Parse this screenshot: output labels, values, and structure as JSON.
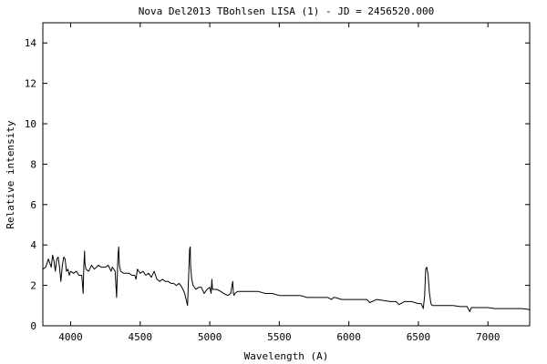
{
  "chart_data": {
    "type": "line",
    "title": "Nova Del2013 TBohlsen LISA (1) - JD = 2456520.000",
    "xlabel": "Wavelength (A)",
    "ylabel": "Relative intensity",
    "xlim": [
      3800,
      7300
    ],
    "ylim": [
      0,
      15
    ],
    "grid": false,
    "legend": "none",
    "x_ticks": [
      4000,
      4500,
      5000,
      5500,
      6000,
      6500,
      7000
    ],
    "y_ticks": [
      0,
      2,
      4,
      6,
      8,
      10,
      12,
      14
    ],
    "line_color": "#000000",
    "series": [
      {
        "x": [
          3800,
          3820,
          3840,
          3860,
          3870,
          3880,
          3890,
          3900,
          3910,
          3920,
          3930,
          3940,
          3950,
          3960,
          3970,
          3980,
          3990,
          4000,
          4020,
          4040,
          4060,
          4080,
          4090,
          4095,
          4100,
          4102,
          4110,
          4130,
          4150,
          4170,
          4200,
          4220,
          4250,
          4270,
          4290,
          4300,
          4320,
          4330,
          4340,
          4345,
          4350,
          4360,
          4380,
          4400,
          4420,
          4440,
          4460,
          4470,
          4480,
          4500,
          4520,
          4540,
          4560,
          4580,
          4600,
          4620,
          4640,
          4660,
          4680,
          4700,
          4720,
          4740,
          4760,
          4780,
          4800,
          4820,
          4840,
          4850,
          4855,
          4860,
          4862,
          4870,
          4880,
          4900,
          4920,
          4940,
          4960,
          4980,
          5000,
          5010,
          5015,
          5020,
          5030,
          5050,
          5080,
          5100,
          5130,
          5150,
          5165,
          5170,
          5175,
          5180,
          5200,
          5250,
          5300,
          5350,
          5400,
          5450,
          5500,
          5550,
          5600,
          5650,
          5700,
          5750,
          5800,
          5850,
          5875,
          5890,
          5900,
          5950,
          6000,
          6050,
          6100,
          6130,
          6150,
          6200,
          6250,
          6300,
          6340,
          6360,
          6400,
          6450,
          6500,
          6520,
          6535,
          6545,
          6552,
          6560,
          6570,
          6580,
          6590,
          6600,
          6620,
          6650,
          6700,
          6750,
          6800,
          6850,
          6870,
          6880,
          6900,
          6950,
          7000,
          7050,
          7100,
          7150,
          7200,
          7250,
          7300
        ],
        "y": [
          2.8,
          2.9,
          3.3,
          2.9,
          3.5,
          3.2,
          2.7,
          3.3,
          3.4,
          2.9,
          2.2,
          3.0,
          3.4,
          3.3,
          2.7,
          2.8,
          2.5,
          2.7,
          2.6,
          2.7,
          2.5,
          2.5,
          1.6,
          3.0,
          3.7,
          3.1,
          2.8,
          2.7,
          3.0,
          2.8,
          3.0,
          2.9,
          2.9,
          3.0,
          2.7,
          2.9,
          2.7,
          1.4,
          3.5,
          3.9,
          3.0,
          2.7,
          2.6,
          2.6,
          2.6,
          2.5,
          2.5,
          2.3,
          2.8,
          2.6,
          2.7,
          2.5,
          2.6,
          2.4,
          2.7,
          2.3,
          2.2,
          2.3,
          2.2,
          2.2,
          2.1,
          2.1,
          2.0,
          2.1,
          1.9,
          1.6,
          1.0,
          2.8,
          3.8,
          3.9,
          3.0,
          2.3,
          2.0,
          1.8,
          1.9,
          1.9,
          1.6,
          1.8,
          1.9,
          1.6,
          2.3,
          1.8,
          1.8,
          1.8,
          1.7,
          1.6,
          1.5,
          1.6,
          2.2,
          1.6,
          1.5,
          1.6,
          1.7,
          1.7,
          1.7,
          1.7,
          1.6,
          1.6,
          1.5,
          1.5,
          1.5,
          1.5,
          1.4,
          1.4,
          1.4,
          1.4,
          1.3,
          1.4,
          1.4,
          1.3,
          1.3,
          1.3,
          1.3,
          1.3,
          1.15,
          1.3,
          1.25,
          1.2,
          1.2,
          1.05,
          1.2,
          1.2,
          1.1,
          1.1,
          0.85,
          1.5,
          2.8,
          2.9,
          2.5,
          1.6,
          1.1,
          1.0,
          1.0,
          1.0,
          1.0,
          1.0,
          0.95,
          0.95,
          0.7,
          0.9,
          0.9,
          0.9,
          0.9,
          0.85,
          0.85,
          0.85,
          0.85,
          0.85,
          0.8
        ]
      }
    ]
  }
}
